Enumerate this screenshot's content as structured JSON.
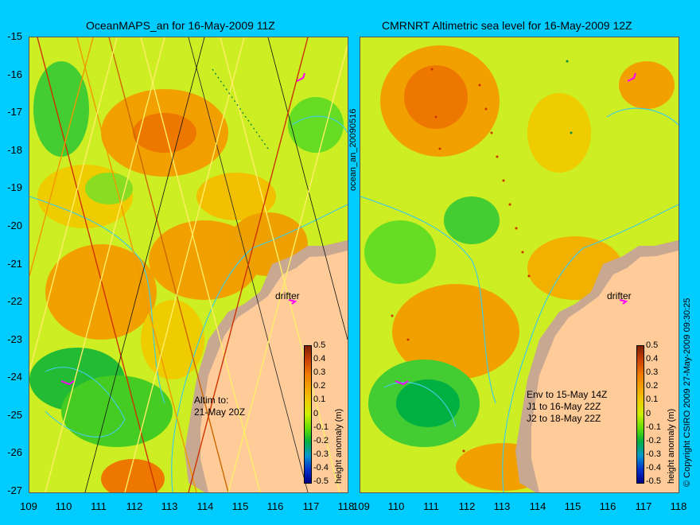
{
  "titles": {
    "left": "OceanMAPS_an for 16-May-2009 11Z",
    "right": "CMRNRT Altimetric sea level  for 16-May-2009 12Z"
  },
  "axes": {
    "y_ticks": [
      "-15",
      "-16",
      "-17",
      "-18",
      "-19",
      "-20",
      "-21",
      "-22",
      "-23",
      "-24",
      "-25",
      "-26",
      "-27"
    ],
    "x_ticks_left": [
      "109",
      "110",
      "111",
      "112",
      "113",
      "114",
      "115",
      "116",
      "117",
      "118"
    ],
    "x_ticks_right": [
      "109",
      "110",
      "111",
      "112",
      "113",
      "114",
      "115",
      "116",
      "117",
      "118"
    ]
  },
  "labels": {
    "drifter": "drifter",
    "left_note": "Altim to:\n21-May 20Z",
    "right_note": "Env to 15-May 14Z\nJ1 to 16-May 22Z\nJ2 to 18-May 22Z",
    "middle_vertical": "ocean_an_20090516",
    "right_vertical": "© Copyright CSIRO 2009   27-May-2009 09:30:25",
    "colorbar_title": "height anomaly (m)"
  },
  "colorbar": {
    "ticks": [
      "0.5",
      "0.4",
      "0.3",
      "0.2",
      "0.1",
      "0",
      "-0.1",
      "-0.2",
      "-0.3",
      "-0.4",
      "-0.5"
    ],
    "colors": [
      "#7f2200",
      "#c84000",
      "#ee7700",
      "#f2a000",
      "#eecc00",
      "#ccee00",
      "#66dd00",
      "#00b040",
      "#0099cc",
      "#0033cc",
      "#000088"
    ]
  },
  "colors": {
    "land": "#ffcc99",
    "shelf": "#c8a890",
    "contour": "#44ccdd",
    "background": "#00ccff",
    "drifter": "#ff00ff"
  }
}
